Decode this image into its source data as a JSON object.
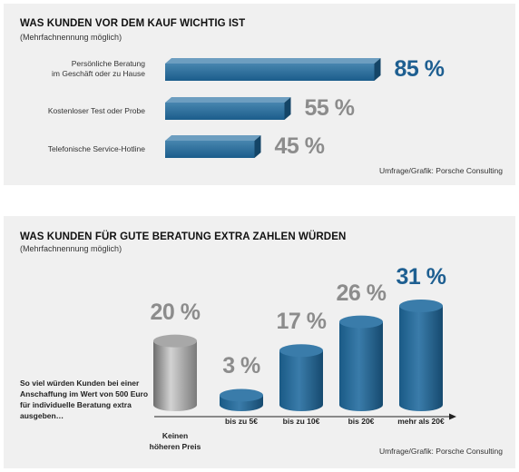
{
  "chart1": {
    "title": "WAS KUNDEN VOR DEM KAUF WICHTIG IST",
    "subtitle": "(Mehrfachnennung möglich)",
    "credit": "Umfrage/Grafik: Porsche Consulting",
    "colors": {
      "bar": "#1f6a9e",
      "highlight": "#1e5f91",
      "value": "#8c8c8c"
    },
    "chart_data": {
      "type": "bar",
      "orientation": "horizontal",
      "categories": [
        "Persönliche Beratung\nim Geschäft oder zu Hause",
        "Kostenloser Test oder Probe",
        "Telefonische Service-Hotline"
      ],
      "values": [
        85,
        55,
        45
      ],
      "value_labels": [
        "85 %",
        "55 %",
        "45 %"
      ],
      "unit": "%",
      "xlim": [
        0,
        100
      ]
    }
  },
  "chart2": {
    "title": "WAS KUNDEN FÜR GUTE BERATUNG EXTRA ZAHLEN WÜRDEN",
    "subtitle": "(Mehrfachnennung möglich)",
    "credit": "Umfrage/Grafik: Porsche Consulting",
    "side_text": "So viel würden Kunden bei einer Anschaffung im Wert von 500 Euro für individuelle Beratung extra ausgeben…",
    "colors": {
      "gray": "#8f8f8f",
      "blue": "#1f6a9e",
      "highlight": "#1e5f91",
      "value": "#8c8c8c"
    },
    "chart_data": {
      "type": "bar",
      "style": "cylinder",
      "categories": [
        "Keinen höheren Preis",
        "bis zu 5€",
        "bis zu 10€",
        "bis 20€",
        "mehr als 20€"
      ],
      "values": [
        20,
        3,
        17,
        26,
        31
      ],
      "value_labels": [
        "20 %",
        "3 %",
        "17 %",
        "26 %",
        "31 %"
      ],
      "unit": "%",
      "ylim": [
        0,
        31
      ]
    }
  }
}
